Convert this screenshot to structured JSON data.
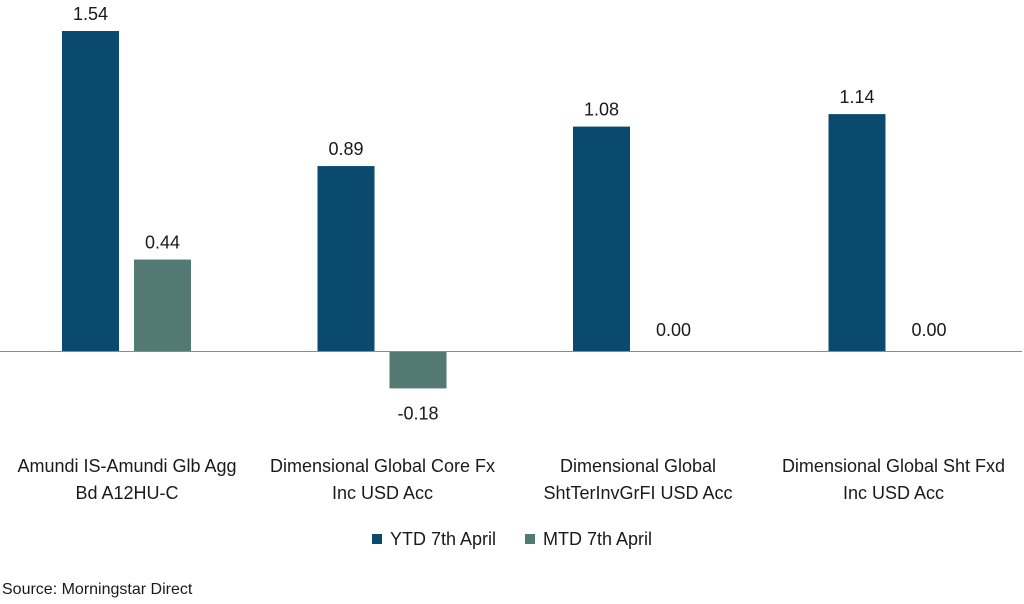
{
  "chart_data": {
    "type": "bar",
    "categories": [
      [
        "Amundi IS-Amundi Glb Agg",
        "Bd A12HU-C"
      ],
      [
        "Dimensional Global Core Fx",
        "Inc USD Acc"
      ],
      [
        "Dimensional Global",
        "ShtTerInvGrFI USD Acc"
      ],
      [
        "Dimensional Global Sht Fxd",
        "Inc USD Acc"
      ]
    ],
    "series": [
      {
        "name": "YTD 7th April",
        "color": "#0b4a6f",
        "values": [
          1.54,
          0.89,
          1.08,
          1.14
        ],
        "labels": [
          "1.54",
          "0.89",
          "1.08",
          "1.14"
        ]
      },
      {
        "name": "MTD 7th April",
        "color": "#537a72",
        "values": [
          0.44,
          -0.18,
          0.0,
          0.0
        ],
        "labels": [
          "0.44",
          "-0.18",
          "0.00",
          "0.00"
        ]
      }
    ],
    "ylim": [
      -0.18,
      1.54
    ],
    "grid": false,
    "legend_position": "bottom"
  },
  "source": "Source: Morningstar Direct"
}
